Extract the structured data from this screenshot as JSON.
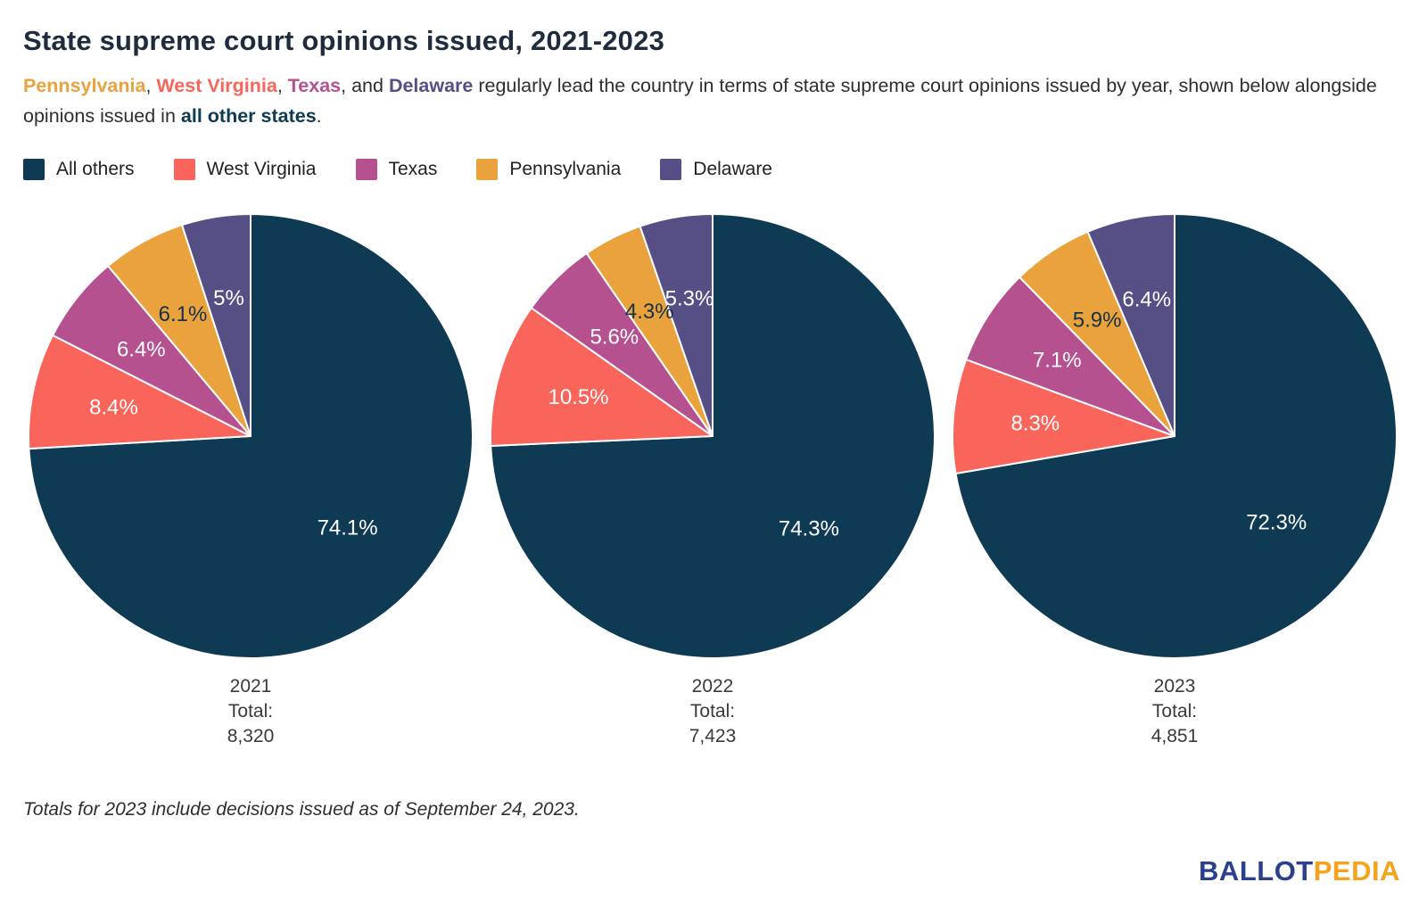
{
  "header": {
    "title": "State supreme court opinions issued, 2021-2023",
    "subtitle_parts": [
      {
        "text": "Pennsylvania"
      },
      {
        "text": ", "
      },
      {
        "text": "West Virginia"
      },
      {
        "text": ", "
      },
      {
        "text": "Texas"
      },
      {
        "text": ", and "
      },
      {
        "text": "Delaware"
      },
      {
        "text": " regularly lead the country in terms of state supreme court opinions issued by year, shown below alongside opinions issued in "
      },
      {
        "text": "all other states"
      },
      {
        "text": "."
      }
    ]
  },
  "colors": {
    "all_others": "#0e3a53",
    "west_virginia": "#f9655a",
    "texas": "#b65190",
    "pennsylvania": "#e9a23c",
    "delaware": "#554f85"
  },
  "legend": {
    "items": [
      {
        "label": "All others",
        "color": "#0e3a53"
      },
      {
        "label": "West Virginia",
        "color": "#f9655a"
      },
      {
        "label": "Texas",
        "color": "#b65190"
      },
      {
        "label": "Pennsylvania",
        "color": "#e9a23c"
      },
      {
        "label": "Delaware",
        "color": "#554f85"
      }
    ]
  },
  "chart_data": [
    {
      "type": "pie",
      "year": "2021",
      "total_label": "Total:",
      "total": "8,320",
      "slices": [
        {
          "label": "All others",
          "value": 74.1,
          "pct_label": "74.1%",
          "color": "#0e3a53",
          "label_color": "#ffffff"
        },
        {
          "label": "West Virginia",
          "value": 8.4,
          "pct_label": "8.4%",
          "color": "#f9655a",
          "label_color": "#ffffff"
        },
        {
          "label": "Texas",
          "value": 6.4,
          "pct_label": "6.4%",
          "color": "#b65190",
          "label_color": "#ffffff"
        },
        {
          "label": "Pennsylvania",
          "value": 6.1,
          "pct_label": "6.1%",
          "color": "#e9a23c",
          "label_color": "#16324a"
        },
        {
          "label": "Delaware",
          "value": 5.0,
          "pct_label": "5%",
          "color": "#554f85",
          "label_color": "#ffffff"
        }
      ]
    },
    {
      "type": "pie",
      "year": "2022",
      "total_label": "Total:",
      "total": "7,423",
      "slices": [
        {
          "label": "All others",
          "value": 74.3,
          "pct_label": "74.3%",
          "color": "#0e3a53",
          "label_color": "#ffffff"
        },
        {
          "label": "West Virginia",
          "value": 10.5,
          "pct_label": "10.5%",
          "color": "#f9655a",
          "label_color": "#ffffff"
        },
        {
          "label": "Texas",
          "value": 5.6,
          "pct_label": "5.6%",
          "color": "#b65190",
          "label_color": "#ffffff"
        },
        {
          "label": "Pennsylvania",
          "value": 4.3,
          "pct_label": "4.3%",
          "color": "#e9a23c",
          "label_color": "#16324a"
        },
        {
          "label": "Delaware",
          "value": 5.3,
          "pct_label": "5.3%",
          "color": "#554f85",
          "label_color": "#ffffff"
        }
      ]
    },
    {
      "type": "pie",
      "year": "2023",
      "total_label": "Total:",
      "total": "4,851",
      "slices": [
        {
          "label": "All others",
          "value": 72.3,
          "pct_label": "72.3%",
          "color": "#0e3a53",
          "label_color": "#ffffff"
        },
        {
          "label": "West Virginia",
          "value": 8.3,
          "pct_label": "8.3%",
          "color": "#f9655a",
          "label_color": "#ffffff"
        },
        {
          "label": "Texas",
          "value": 7.1,
          "pct_label": "7.1%",
          "color": "#b65190",
          "label_color": "#ffffff"
        },
        {
          "label": "Pennsylvania",
          "value": 5.9,
          "pct_label": "5.9%",
          "color": "#e9a23c",
          "label_color": "#16324a"
        },
        {
          "label": "Delaware",
          "value": 6.4,
          "pct_label": "6.4%",
          "color": "#554f85",
          "label_color": "#ffffff"
        }
      ]
    }
  ],
  "footnote": "Totals for 2023 include decisions issued as of September 24, 2023.",
  "logo": {
    "ballot": "BALLOT",
    "pedia": "PEDIA"
  }
}
